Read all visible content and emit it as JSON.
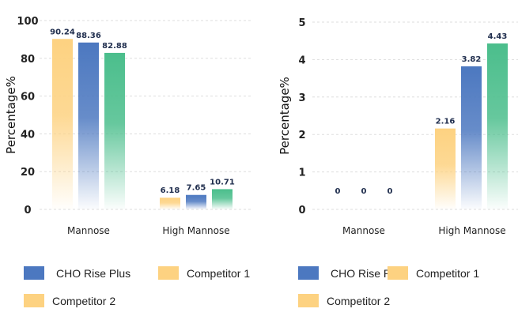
{
  "colors": {
    "yellow": "#FDD281",
    "blue": "#4C78C0",
    "green": "#4BBE8C"
  },
  "chart_data": [
    {
      "type": "bar",
      "ylabel": "Percentage%",
      "ylim": [
        0,
        100
      ],
      "yticks": [
        "0",
        "20",
        "40",
        "60",
        "80",
        "100"
      ],
      "yvals": [
        0,
        20,
        40,
        60,
        80,
        100
      ],
      "grid": true,
      "categories": [
        "Mannose",
        "High Mannose"
      ],
      "bar_colors": [
        "yellow",
        "blue",
        "green"
      ],
      "values": [
        [
          90.24,
          88.36,
          82.88
        ],
        [
          6.18,
          7.65,
          10.71
        ]
      ],
      "labels": [
        [
          "90.24",
          "88.36",
          "82.88"
        ],
        [
          "6.18",
          "7.65",
          "10.71"
        ]
      ]
    },
    {
      "type": "bar",
      "ylabel": "Percentage%",
      "ylim": [
        0,
        5
      ],
      "yticks": [
        "0",
        "1",
        "2",
        "3",
        "4",
        "5"
      ],
      "yvals": [
        0,
        1,
        2,
        3,
        4,
        5
      ],
      "grid": true,
      "categories": [
        "Mannose",
        "High Mannose"
      ],
      "bar_colors": [
        "yellow",
        "blue",
        "green"
      ],
      "values": [
        [
          0,
          0,
          0
        ],
        [
          2.16,
          3.82,
          4.43
        ]
      ],
      "labels": [
        [
          "0",
          "0",
          "0"
        ],
        [
          "2.16",
          "3.82",
          "4.43"
        ]
      ]
    }
  ],
  "legends": [
    [
      {
        "label": "CHO Rise Plus",
        "color": "#4C78C0"
      },
      {
        "label": "Competitor 1",
        "color": "#FDD281"
      },
      {
        "label": "Competitor 2",
        "color": "#FDD281"
      }
    ],
    [
      {
        "label": "CHO Rise Plus",
        "color": "#4C78C0"
      },
      {
        "label": "Competitor 1",
        "color": "#FDD281"
      },
      {
        "label": "Competitor 2",
        "color": "#FDD281"
      }
    ]
  ]
}
